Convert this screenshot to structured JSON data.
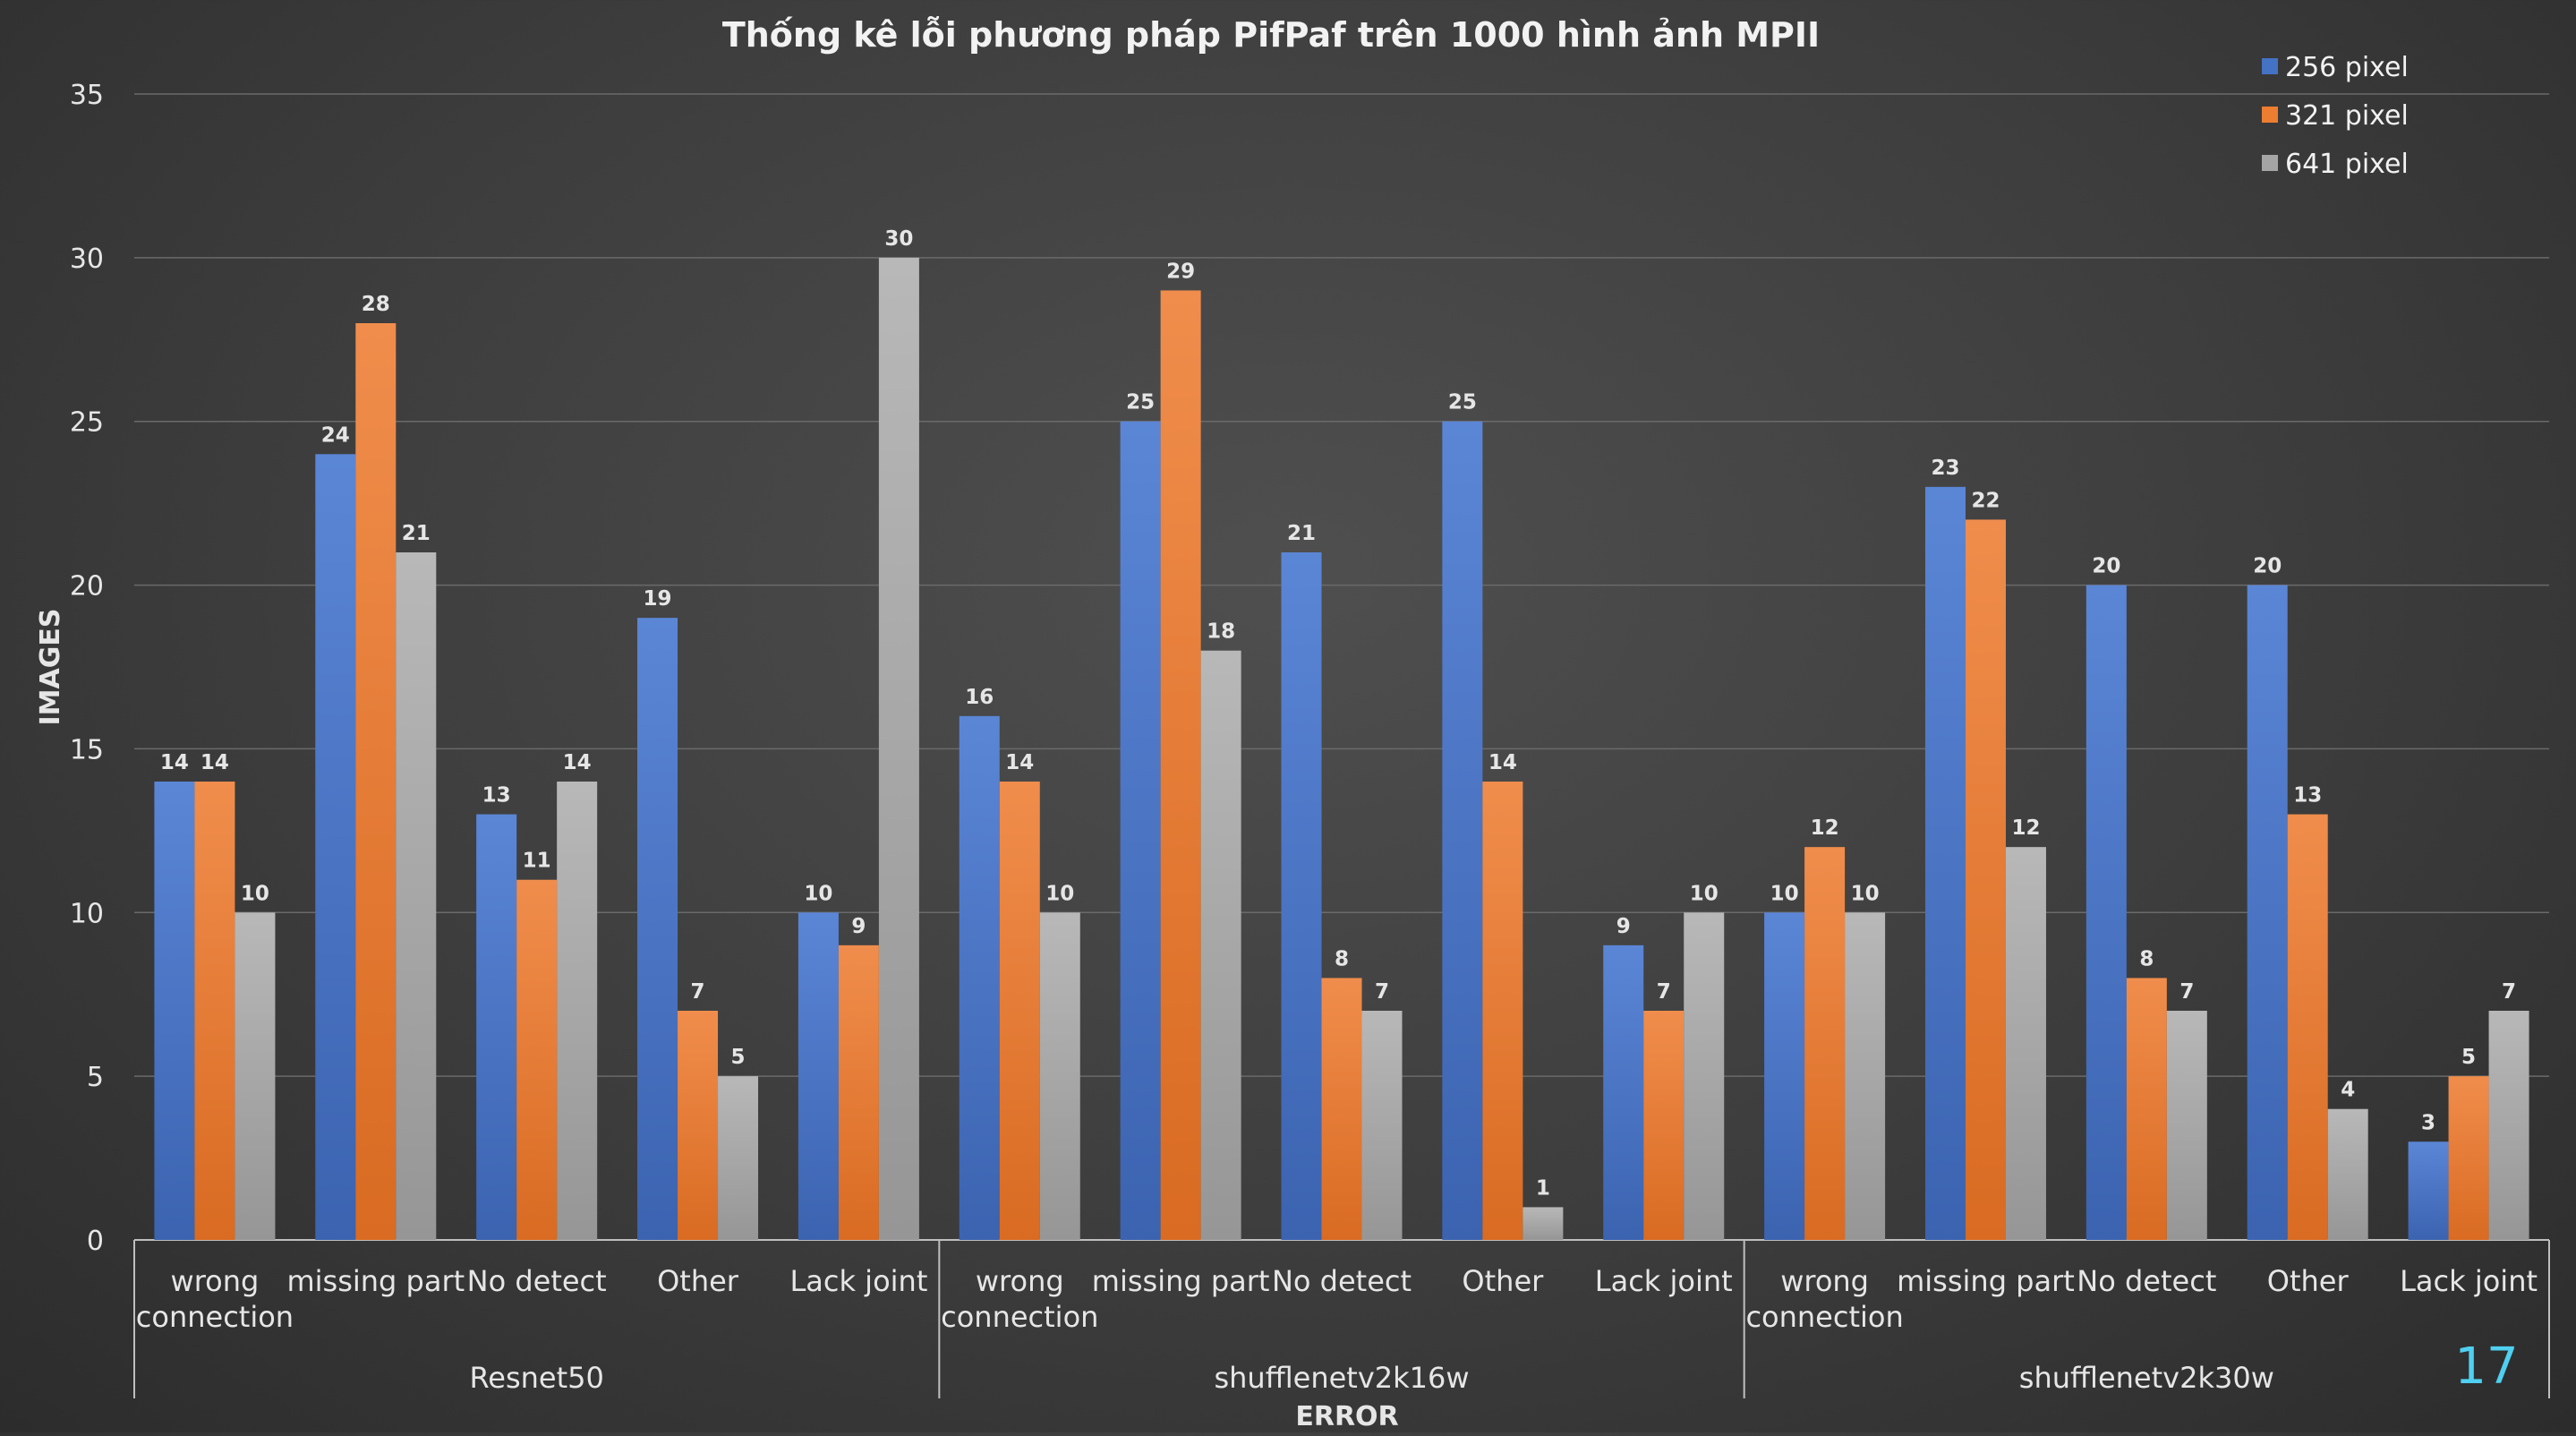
{
  "page_number": "17",
  "chart_data": {
    "type": "bar",
    "title": "Thống kê lỗi phương pháp PifPaf trên 1000 hình ảnh MPII",
    "xlabel": "ERROR",
    "ylabel": "IMAGES",
    "ylim": [
      0,
      35
    ],
    "yticks": [
      "0",
      "5",
      "10",
      "15",
      "20",
      "25",
      "30",
      "35"
    ],
    "grid": true,
    "legend_position": "top-right",
    "groups": [
      {
        "name": "Resnet50",
        "categories": [
          {
            "label": [
              "wrong",
              "connection"
            ],
            "values": [
              14,
              14,
              10
            ]
          },
          {
            "label": [
              "missing part"
            ],
            "values": [
              24,
              28,
              21
            ]
          },
          {
            "label": [
              "No detect"
            ],
            "values": [
              13,
              11,
              14
            ]
          },
          {
            "label": [
              "Other"
            ],
            "values": [
              19,
              7,
              5
            ]
          },
          {
            "label": [
              "Lack joint"
            ],
            "values": [
              10,
              9,
              30
            ]
          }
        ]
      },
      {
        "name": "shufflenetv2k16w",
        "categories": [
          {
            "label": [
              "wrong",
              "connection"
            ],
            "values": [
              16,
              14,
              10
            ]
          },
          {
            "label": [
              "missing part"
            ],
            "values": [
              25,
              29,
              18
            ]
          },
          {
            "label": [
              "No detect"
            ],
            "values": [
              21,
              8,
              7
            ]
          },
          {
            "label": [
              "Other"
            ],
            "values": [
              25,
              14,
              1
            ]
          },
          {
            "label": [
              "Lack joint"
            ],
            "values": [
              9,
              7,
              10
            ]
          }
        ]
      },
      {
        "name": "shufflenetv2k30w",
        "categories": [
          {
            "label": [
              "wrong",
              "connection"
            ],
            "values": [
              10,
              12,
              10
            ]
          },
          {
            "label": [
              "missing part"
            ],
            "values": [
              23,
              22,
              12
            ]
          },
          {
            "label": [
              "No detect"
            ],
            "values": [
              20,
              8,
              7
            ]
          },
          {
            "label": [
              "Other"
            ],
            "values": [
              20,
              13,
              4
            ]
          },
          {
            "label": [
              "Lack joint"
            ],
            "values": [
              3,
              5,
              7
            ]
          }
        ]
      }
    ],
    "series": [
      {
        "name": "256 pixel",
        "color": "#4472c4"
      },
      {
        "name": "321 pixel",
        "color": "#ed7d31"
      },
      {
        "name": "641 pixel",
        "color": "#a5a5a5"
      }
    ]
  }
}
